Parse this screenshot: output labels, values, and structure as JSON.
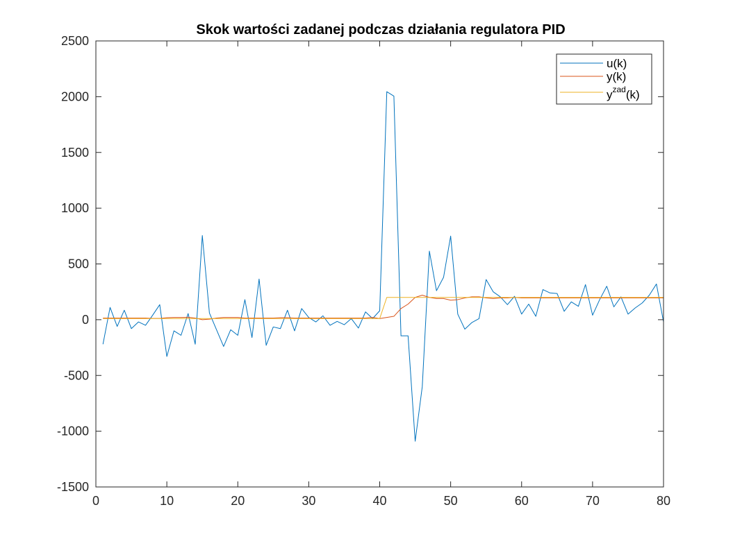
{
  "chart_data": {
    "type": "line",
    "title": "Skok wartości zadanej podczas działania regulatora PID",
    "xlabel": "",
    "ylabel": "",
    "xlim": [
      0,
      80
    ],
    "ylim": [
      -1500,
      2500
    ],
    "xticks": [
      0,
      10,
      20,
      30,
      40,
      50,
      60,
      70,
      80
    ],
    "yticks": [
      -1500,
      -1000,
      -500,
      0,
      500,
      1000,
      1500,
      2000,
      2500
    ],
    "xtick_labels": [
      "0",
      "10",
      "20",
      "30",
      "40",
      "50",
      "60",
      "70",
      "80"
    ],
    "ytick_labels": [
      "-1500",
      "-1000",
      "-500",
      "0",
      "500",
      "1000",
      "1500",
      "2000",
      "2500"
    ],
    "grid": false,
    "legend_position": "top-right",
    "x": [
      1,
      2,
      3,
      4,
      5,
      6,
      7,
      8,
      9,
      10,
      11,
      12,
      13,
      14,
      15,
      16,
      17,
      18,
      19,
      20,
      21,
      22,
      23,
      24,
      25,
      26,
      27,
      28,
      29,
      30,
      31,
      32,
      33,
      34,
      35,
      36,
      37,
      38,
      39,
      40,
      41,
      42,
      43,
      44,
      45,
      46,
      47,
      48,
      49,
      50,
      51,
      52,
      53,
      54,
      55,
      56,
      57,
      58,
      59,
      60,
      61,
      62,
      63,
      64,
      65,
      66,
      67,
      68,
      69,
      70,
      71,
      72,
      73,
      74,
      75,
      76,
      77,
      78,
      79,
      80
    ],
    "series": [
      {
        "name": "u(k)",
        "color": "#0072bd",
        "values": [
          -220,
          110,
          -60,
          85,
          -80,
          -20,
          -50,
          40,
          135,
          -330,
          -100,
          -140,
          55,
          -220,
          755,
          60,
          -90,
          -240,
          -90,
          -140,
          180,
          -160,
          365,
          -230,
          -65,
          -80,
          85,
          -100,
          100,
          20,
          -20,
          35,
          -50,
          -15,
          -45,
          10,
          -75,
          70,
          10,
          80,
          2045,
          2005,
          -145,
          -145,
          -1090,
          -600,
          615,
          260,
          380,
          750,
          50,
          -85,
          -25,
          10,
          360,
          250,
          205,
          135,
          210,
          50,
          140,
          30,
          270,
          240,
          235,
          75,
          160,
          120,
          315,
          40,
          180,
          300,
          115,
          205,
          50,
          105,
          150,
          220,
          320,
          -20
        ]
      },
      {
        "name": "y(k)",
        "color": "#d95319",
        "values": [
          15,
          15,
          15,
          15,
          15,
          15,
          15,
          12,
          12,
          18,
          20,
          20,
          22,
          15,
          0,
          5,
          15,
          20,
          20,
          20,
          15,
          15,
          15,
          15,
          15,
          18,
          18,
          15,
          15,
          15,
          15,
          15,
          15,
          15,
          15,
          15,
          15,
          15,
          20,
          10,
          20,
          30,
          100,
          140,
          200,
          220,
          200,
          190,
          190,
          175,
          180,
          195,
          205,
          205,
          195,
          190,
          195,
          195,
          200,
          195,
          195,
          195,
          195,
          195,
          195,
          195,
          195,
          195,
          195,
          195,
          195,
          195,
          195,
          195,
          195,
          195,
          195,
          195,
          195,
          195
        ]
      },
      {
        "name": "y^zad(k)",
        "legend_base": "y",
        "legend_sup": "zad",
        "legend_tail": "(k)",
        "color": "#edb120",
        "values": [
          10,
          10,
          10,
          10,
          10,
          10,
          10,
          10,
          10,
          10,
          10,
          10,
          10,
          10,
          10,
          10,
          10,
          10,
          10,
          10,
          10,
          10,
          10,
          10,
          10,
          10,
          10,
          10,
          10,
          10,
          10,
          10,
          10,
          10,
          10,
          10,
          10,
          10,
          10,
          10,
          200,
          200,
          200,
          200,
          200,
          200,
          200,
          200,
          200,
          200,
          200,
          200,
          200,
          200,
          200,
          200,
          200,
          200,
          200,
          200,
          200,
          200,
          200,
          200,
          200,
          200,
          200,
          200,
          200,
          200,
          200,
          200,
          200,
          200,
          200,
          200,
          200,
          200,
          200,
          200
        ]
      }
    ]
  }
}
